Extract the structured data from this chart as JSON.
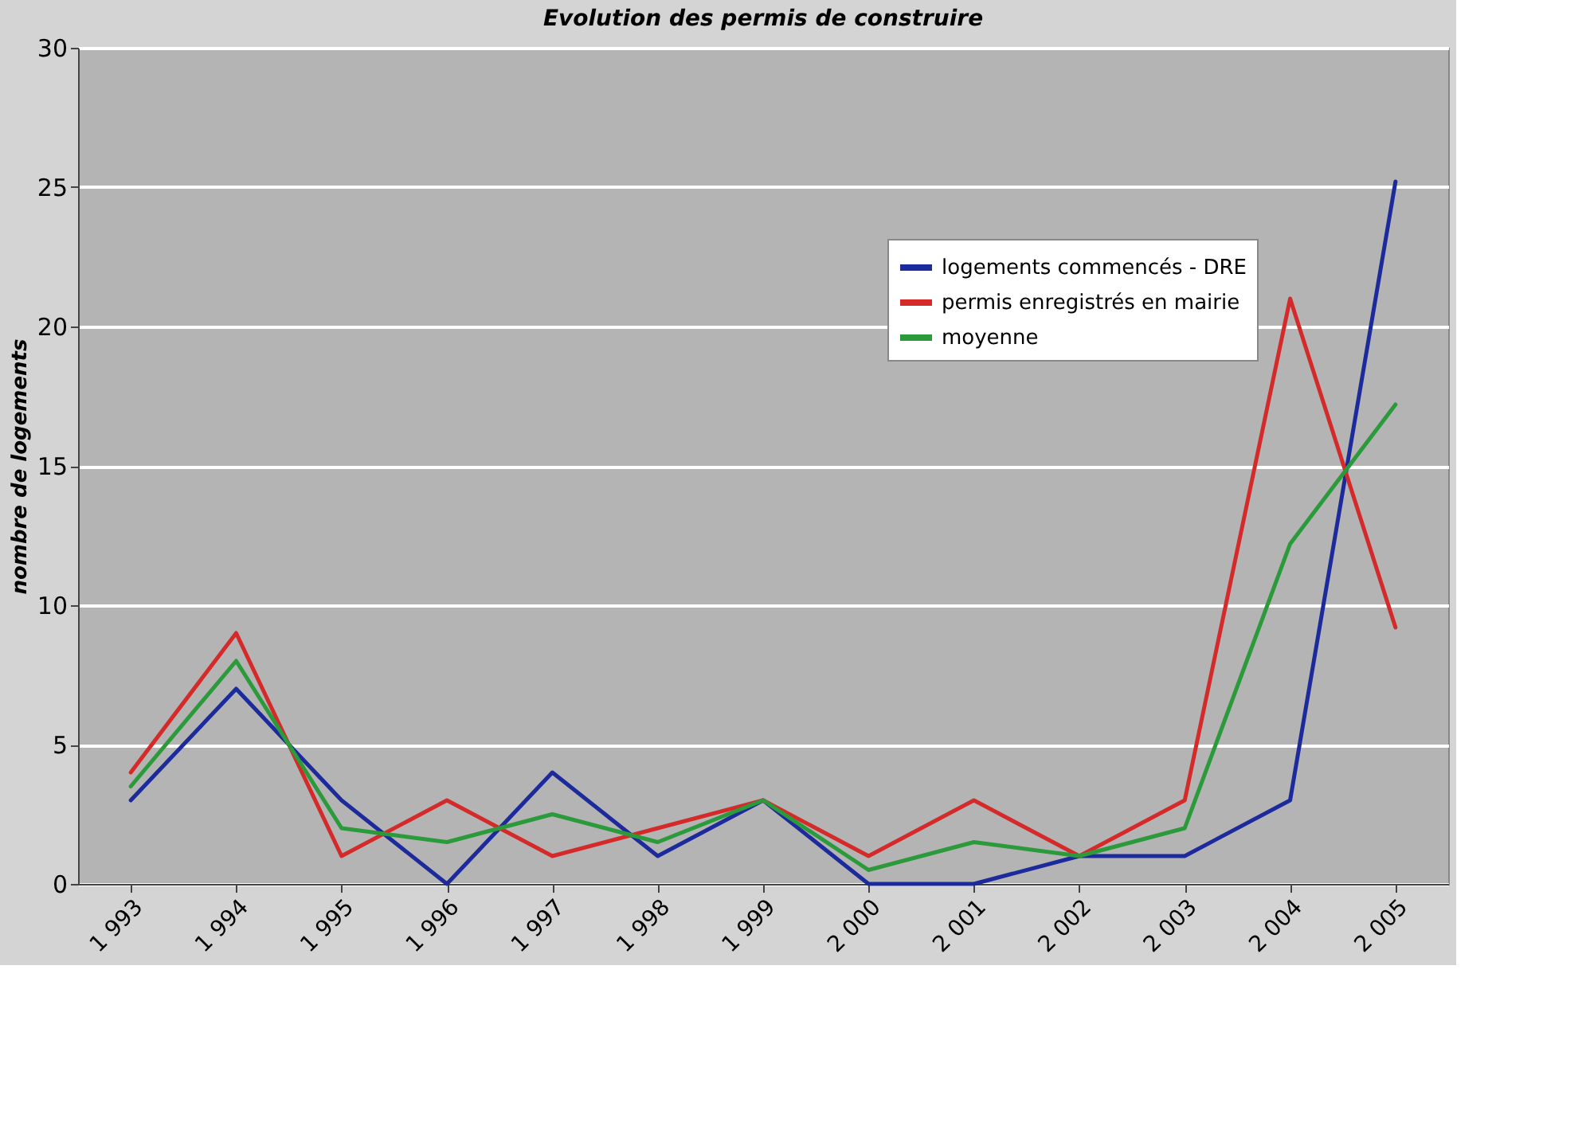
{
  "chart_data": {
    "type": "line",
    "title": "Evolution des permis de construire",
    "ylabel": "nombre de logements",
    "categories": [
      "1 993",
      "1 994",
      "1 995",
      "1 996",
      "1 997",
      "1 998",
      "1 999",
      "2 000",
      "2 001",
      "2 002",
      "2 003",
      "2 004",
      "2 005"
    ],
    "series": [
      {
        "name": "logements commencés - DRE",
        "color": "#1c2a9c",
        "values": [
          3,
          7,
          3,
          0,
          4,
          1,
          3,
          0,
          0,
          1,
          1,
          3,
          25.2
        ]
      },
      {
        "name": "permis enregistrés en mairie",
        "color": "#d42a2a",
        "values": [
          4,
          9,
          1,
          3,
          1,
          2,
          3,
          1,
          3,
          1,
          3,
          21,
          9.2
        ]
      },
      {
        "name": "moyenne",
        "color": "#2a9a3a",
        "values": [
          3.5,
          8,
          2,
          1.5,
          2.5,
          1.5,
          3,
          0.5,
          1.5,
          1,
          2,
          12.2,
          17.2
        ]
      }
    ],
    "ylim": [
      0,
      30
    ],
    "yticks": [
      0,
      5,
      10,
      15,
      20,
      25,
      30
    ],
    "grid": "y",
    "legend": "top right"
  }
}
